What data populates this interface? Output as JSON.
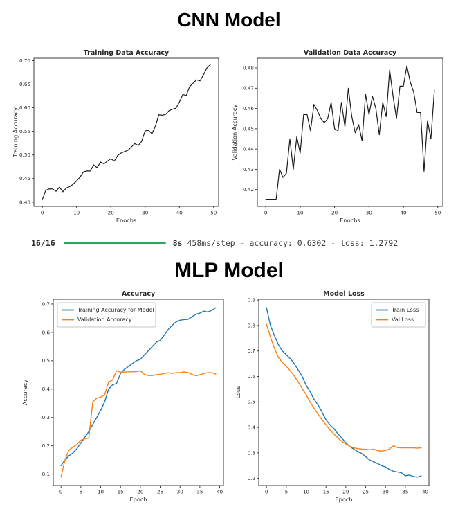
{
  "cnn_section": {
    "title": "CNN Model"
  },
  "mlp_section": {
    "title": "MLP Model"
  },
  "progress": {
    "step_count": "16/16",
    "duration": "8s",
    "details": "458ms/step - accuracy: 0.6302 - loss: 1.2792",
    "bar_color": "#2ea35f",
    "accuracy": "0.6302",
    "loss": "1.2792"
  },
  "colors": {
    "cnn_line": "#1a1a1a",
    "train_blue": "#1f77b4",
    "val_orange": "#ff7f0e",
    "spine": "#262626"
  },
  "chart_data": [
    {
      "id": "cnn-training",
      "type": "line",
      "title": "Training Data Accuracy",
      "xlabel": "Epochs",
      "ylabel": "Training Accuracy",
      "xlim": [
        -2.45,
        51.45
      ],
      "ylim": [
        0.391,
        0.705
      ],
      "xticks": [
        0,
        10,
        20,
        30,
        40,
        50
      ],
      "xtick_labels": [
        "0",
        "10",
        "20",
        "30",
        "40",
        "50"
      ],
      "yticks": [
        0.4,
        0.45,
        0.5,
        0.55,
        0.6,
        0.65,
        0.7
      ],
      "ytick_labels": [
        "0.40",
        "0.45",
        "0.50",
        "0.55",
        "0.60",
        "0.65",
        "0.70"
      ],
      "legend": null,
      "series": [
        {
          "name": "Training Accuracy",
          "color": "#1a1a1a",
          "values": [
            0.405,
            0.425,
            0.428,
            0.428,
            0.423,
            0.432,
            0.422,
            0.43,
            0.433,
            0.438,
            0.445,
            0.453,
            0.464,
            0.466,
            0.466,
            0.479,
            0.473,
            0.485,
            0.481,
            0.487,
            0.492,
            0.487,
            0.499,
            0.504,
            0.507,
            0.51,
            0.517,
            0.524,
            0.52,
            0.529,
            0.551,
            0.552,
            0.545,
            0.561,
            0.585,
            0.584,
            0.586,
            0.594,
            0.597,
            0.599,
            0.612,
            0.628,
            0.626,
            0.645,
            0.652,
            0.659,
            0.657,
            0.669,
            0.684,
            0.691
          ]
        }
      ]
    },
    {
      "id": "cnn-validation",
      "type": "line",
      "title": "Validation Data Accuracy",
      "xlabel": "Epochs",
      "ylabel": "Validation Accuracy",
      "xlim": [
        -2.45,
        51.45
      ],
      "ylim": [
        0.4117,
        0.4848
      ],
      "xticks": [
        0,
        10,
        20,
        30,
        40,
        50
      ],
      "xtick_labels": [
        "0",
        "10",
        "20",
        "30",
        "40",
        "50"
      ],
      "yticks": [
        0.42,
        0.43,
        0.44,
        0.45,
        0.46,
        0.47,
        0.48
      ],
      "ytick_labels": [
        "0.42",
        "0.43",
        "0.44",
        "0.45",
        "0.46",
        "0.47",
        "0.48"
      ],
      "legend": null,
      "series": [
        {
          "name": "Validation Accuracy",
          "color": "#1a1a1a",
          "values": [
            0.415,
            0.415,
            0.415,
            0.415,
            0.43,
            0.426,
            0.428,
            0.445,
            0.43,
            0.446,
            0.438,
            0.457,
            0.457,
            0.449,
            0.462,
            0.459,
            0.455,
            0.453,
            0.455,
            0.463,
            0.45,
            0.449,
            0.463,
            0.451,
            0.47,
            0.456,
            0.448,
            0.452,
            0.444,
            0.467,
            0.457,
            0.466,
            0.46,
            0.447,
            0.463,
            0.456,
            0.479,
            0.466,
            0.455,
            0.471,
            0.471,
            0.481,
            0.473,
            0.468,
            0.458,
            0.458,
            0.429,
            0.454,
            0.445,
            0.469
          ]
        }
      ]
    },
    {
      "id": "mlp-accuracy",
      "type": "line",
      "title": "Accuracy",
      "xlabel": "Epoch",
      "ylabel": "Accuracy",
      "xlim": [
        -1.95,
        40.95
      ],
      "ylim": [
        0.06,
        0.717
      ],
      "xticks": [
        0,
        5,
        10,
        15,
        20,
        25,
        30,
        35,
        40
      ],
      "xtick_labels": [
        "0",
        "5",
        "10",
        "15",
        "20",
        "25",
        "30",
        "35",
        "40"
      ],
      "yticks": [
        0.1,
        0.2,
        0.3,
        0.4,
        0.5,
        0.6,
        0.7
      ],
      "ytick_labels": [
        "0.1",
        "0.2",
        "0.3",
        "0.4",
        "0.5",
        "0.6",
        "0.7"
      ],
      "legend": {
        "position": "top-left"
      },
      "series": [
        {
          "name": "Training Accuracy for Model",
          "color": "#1f77b4",
          "values": [
            0.13,
            0.15,
            0.165,
            0.175,
            0.19,
            0.21,
            0.23,
            0.25,
            0.275,
            0.3,
            0.325,
            0.355,
            0.4,
            0.415,
            0.42,
            0.455,
            0.47,
            0.48,
            0.49,
            0.5,
            0.505,
            0.52,
            0.535,
            0.55,
            0.565,
            0.572,
            0.59,
            0.61,
            0.625,
            0.637,
            0.643,
            0.645,
            0.646,
            0.655,
            0.664,
            0.668,
            0.675,
            0.672,
            0.678,
            0.687
          ]
        },
        {
          "name": "Validation Accuracy",
          "color": "#ff7f0e",
          "values": [
            0.09,
            0.15,
            0.185,
            0.195,
            0.205,
            0.22,
            0.225,
            0.227,
            0.355,
            0.368,
            0.372,
            0.38,
            0.425,
            0.432,
            0.465,
            0.46,
            0.46,
            0.461,
            0.461,
            0.462,
            0.465,
            0.452,
            0.448,
            0.448,
            0.451,
            0.452,
            0.455,
            0.458,
            0.455,
            0.458,
            0.458,
            0.461,
            0.458,
            0.452,
            0.447,
            0.451,
            0.455,
            0.458,
            0.458,
            0.453
          ]
        }
      ]
    },
    {
      "id": "mlp-loss",
      "type": "line",
      "title": "Model Loss",
      "xlabel": "Epoch",
      "ylabel": "Loss",
      "xlim": [
        -1.95,
        40.95
      ],
      "ylim": [
        0.172,
        0.903
      ],
      "xticks": [
        0,
        5,
        10,
        15,
        20,
        25,
        30,
        35,
        40
      ],
      "xtick_labels": [
        "0",
        "5",
        "10",
        "15",
        "20",
        "25",
        "30",
        "35",
        "40"
      ],
      "yticks": [
        0.2,
        0.3,
        0.4,
        0.5,
        0.6,
        0.7,
        0.8,
        0.9
      ],
      "ytick_labels": [
        "0.2",
        "0.3",
        "0.4",
        "0.5",
        "0.6",
        "0.7",
        "0.8",
        "0.9"
      ],
      "legend": {
        "position": "top-right"
      },
      "series": [
        {
          "name": "Train Loss",
          "color": "#1f77b4",
          "values": [
            0.87,
            0.8,
            0.76,
            0.725,
            0.7,
            0.685,
            0.67,
            0.65,
            0.625,
            0.6,
            0.565,
            0.54,
            0.51,
            0.488,
            0.46,
            0.43,
            0.41,
            0.395,
            0.375,
            0.358,
            0.34,
            0.325,
            0.315,
            0.305,
            0.298,
            0.285,
            0.272,
            0.265,
            0.258,
            0.25,
            0.245,
            0.235,
            0.228,
            0.225,
            0.222,
            0.21,
            0.213,
            0.208,
            0.205,
            0.21
          ]
        },
        {
          "name": "Val Loss",
          "color": "#ff7f0e",
          "values": [
            0.805,
            0.755,
            0.71,
            0.675,
            0.655,
            0.64,
            0.622,
            0.602,
            0.578,
            0.553,
            0.528,
            0.5,
            0.475,
            0.452,
            0.43,
            0.41,
            0.39,
            0.374,
            0.359,
            0.345,
            0.335,
            0.326,
            0.32,
            0.317,
            0.315,
            0.314,
            0.312,
            0.315,
            0.309,
            0.307,
            0.31,
            0.315,
            0.328,
            0.321,
            0.32,
            0.32,
            0.32,
            0.32,
            0.319,
            0.32
          ]
        }
      ]
    }
  ]
}
